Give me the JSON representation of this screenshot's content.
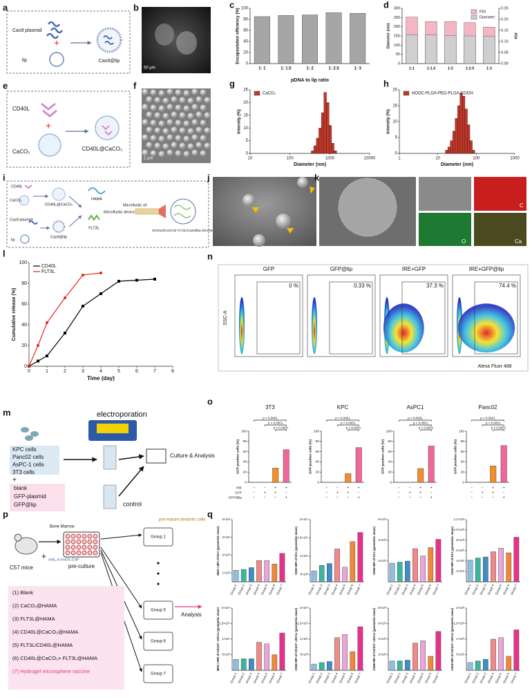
{
  "panel_labels": [
    "a",
    "b",
    "c",
    "d",
    "e",
    "f",
    "g",
    "h",
    "i",
    "j",
    "k",
    "l",
    "m",
    "n",
    "o",
    "p",
    "q"
  ],
  "a": {
    "plasmid": "Cas9 plasmid",
    "lip": "lip",
    "product": "Cas9@lip"
  },
  "b": {
    "scale_bar": "50 μm"
  },
  "e": {
    "protein": "CD40L",
    "core": "CaCO₃",
    "product": "CD40L@CaCO₃"
  },
  "f": {
    "scale_bar": "1 μm"
  },
  "i": {
    "labels": [
      "CD40L",
      "CaCO₃",
      "CD40L@CaCO₃",
      "HAMA",
      "Microfluidic oil",
      "Cas9 plasmid",
      "lip",
      "Cas9@lip",
      "FLT3L",
      "Microfluidic device",
      "CD40L@CaCO3/ FLT3L/Cas9@lip @HAMA"
    ]
  },
  "k": {
    "elements": [
      "C",
      "O",
      "Ca"
    ]
  },
  "n": {
    "y_label": "SSC-A",
    "x_label": "Alexa Fluor 488",
    "plots": [
      {
        "title": "GFP",
        "percent": "0 %"
      },
      {
        "title": "GFP@lip",
        "percent": "0.33 %"
      },
      {
        "title": "IRE+GFP",
        "percent": "37.3 %"
      },
      {
        "title": "IRE+GFP@lip",
        "percent": "74.4 %"
      }
    ]
  },
  "m": {
    "title": "electroporation",
    "cells": [
      "KPC cells",
      "Panc02 cells",
      "AsPC-1 cells",
      "3T3 cells"
    ],
    "treatments": [
      "blank",
      "GFP-plasmid",
      "GFP@lip"
    ],
    "outcome": "Culture & Analysis",
    "control": "control"
  },
  "o_table": {
    "rows": [
      "IRE",
      "GFP",
      "GFP@lip"
    ],
    "signs": [
      [
        "−",
        "−",
        "+",
        "+"
      ],
      [
        "−",
        "+",
        "+",
        "−"
      ],
      [
        "−",
        "−",
        "−",
        "+"
      ]
    ]
  },
  "p": {
    "source": "Bone Marrow",
    "cells": "pre-mature dendritic cells",
    "mice": "C57 mice",
    "cytokines": "rmIL-4 rmGS-CSF",
    "step": "pre-culture",
    "groups": [
      "Group 1",
      "Group 5",
      "Group 6",
      "Group 7"
    ],
    "analysis": "Analysis",
    "list": [
      "(1) Blank",
      "(2) CaCO₃@HAMA",
      "(3) FLT3L@HAMA",
      "(4) CD40L@CaCO₃@HAMA",
      "(5) FLT3L/CD40L@HAMA",
      "(6) CD40L@CaCO₃+ FLT3L@HAMA",
      "(7) Hydrogel microsphere vaccine"
    ]
  },
  "chart_data": [
    {
      "type": "bar",
      "ylabel": "Encapsulation efficiency (%)",
      "xlabel": "pDNA to lip ratio",
      "categories": [
        "1: 1",
        "1: 1.5",
        "1: 2",
        "1: 2.5",
        "1: 3"
      ],
      "values": [
        85,
        87,
        88,
        92,
        91
      ],
      "color": "#a6a6a6",
      "ylim": [
        0,
        100
      ],
      "yticks": [
        0,
        20,
        40,
        60,
        80,
        100
      ]
    },
    {
      "type": "bar",
      "ylabel": "Diameter (nm)",
      "y2label": "PDI",
      "categories": [
        "1:1",
        "1:1.5",
        "1:2",
        "1:2.5",
        "1:3"
      ],
      "series": [
        {
          "name": "PDI",
          "color": "#f4b6c2",
          "values": [
            0.21,
            0.19,
            0.19,
            0.185,
            0.165
          ],
          "axis": "y2"
        },
        {
          "name": "Diameter",
          "color": "#cfcfcf",
          "values": [
            155,
            155,
            152,
            150,
            148
          ]
        }
      ],
      "ylim": [
        0,
        300
      ],
      "yticks": [
        0,
        50,
        100,
        150,
        200,
        250,
        300
      ],
      "y2lim": [
        0,
        0.25
      ],
      "y2ticks": [
        {
          "value": 0,
          "label": "0.00"
        },
        0.05,
        {
          "value": 0.1,
          "label": "0.10"
        },
        0.15,
        {
          "value": 0.2,
          "label": "0.20"
        },
        0.25
      ],
      "legend": "top-right"
    },
    {
      "type": "histogram",
      "ylabel": "Intensity (%)",
      "xlabel": "Diameter (nm)",
      "series": [
        {
          "name": "CaCO₃",
          "color": "#c0392b"
        }
      ],
      "legend": "top-left",
      "bins": [
        342,
        396,
        459,
        531,
        615,
        712,
        825,
        955,
        1106,
        1281,
        1484
      ],
      "values": [
        1,
        3,
        6,
        10,
        16,
        24,
        20,
        11,
        4,
        1
      ],
      "xlog": true,
      "xlim": [
        10,
        10000
      ],
      "xticks": [
        10,
        100,
        1000,
        10000
      ],
      "ylim": [
        0,
        25
      ],
      "yticks": [
        0,
        5,
        10,
        15,
        20,
        25
      ]
    },
    {
      "type": "histogram",
      "ylabel": "Intensity (%)",
      "xlabel": "Diameter (nm)",
      "series": [
        {
          "name": "HOOC-PLGA-PEG-PLGA-COOH",
          "color": "#c0392b"
        }
      ],
      "legend": "top-left",
      "bins": [
        15.7,
        18.2,
        21,
        24.4,
        28.2,
        32.7,
        37.8,
        43.8,
        50.7,
        58.8,
        68.1,
        78.8,
        91.3
      ],
      "values": [
        1,
        2,
        4,
        7,
        11,
        15,
        19,
        18,
        14,
        9,
        4,
        1
      ],
      "xlog": true,
      "xlim": [
        1,
        1000
      ],
      "xticks": [
        1,
        10,
        100,
        1000
      ],
      "ylim": [
        0,
        20
      ],
      "yticks": [
        0,
        5,
        10,
        15,
        20
      ]
    },
    {
      "type": "line",
      "ylabel": "Cumulative release (%)",
      "xlabel": "Time (day)",
      "legend": "top-left",
      "series": [
        {
          "name": "CD40L",
          "color": "#000000",
          "x": [
            0,
            0.5,
            1,
            2,
            3,
            4,
            5,
            6,
            7
          ],
          "values": [
            0,
            5,
            10,
            32,
            58,
            70,
            82,
            83,
            84
          ]
        },
        {
          "name": "FLT3L",
          "color": "#e8231c",
          "x": [
            0,
            0.5,
            1,
            2,
            3,
            4
          ],
          "values": [
            0,
            20,
            42,
            66,
            88,
            90
          ]
        }
      ],
      "xlim": [
        0,
        8
      ],
      "xticks": [
        0,
        1,
        2,
        3,
        4,
        5,
        6,
        7,
        8
      ],
      "ylim": [
        0,
        100
      ],
      "yticks": [
        0,
        20,
        40,
        60,
        80,
        100
      ]
    },
    {
      "type": "bar",
      "title": "3T3",
      "ylabel": "GFP positive cells (%)",
      "categories": [
        null,
        null,
        null,
        null
      ],
      "values": [
        0,
        0,
        28,
        64
      ],
      "colors": [
        "#b0b0b0",
        "#b0b0b0",
        "#f28e2b",
        "#f0679a"
      ],
      "ylim": [
        0,
        100
      ],
      "yticks": [
        0,
        20,
        40,
        60,
        80,
        100
      ],
      "annotations": [
        "p < 0.0001",
        "p < 0.0001",
        "p < 0.0001"
      ]
    },
    {
      "type": "bar",
      "title": "KPC",
      "ylabel": "GFP positive cells (%)",
      "categories": [
        null,
        null,
        null,
        null
      ],
      "values": [
        0,
        0,
        17,
        68
      ],
      "colors": [
        "#b0b0b0",
        "#b0b0b0",
        "#f28e2b",
        "#f0679a"
      ],
      "ylim": [
        0,
        100
      ],
      "yticks": [
        0,
        20,
        40,
        60,
        80,
        100
      ],
      "annotations": [
        "p < 0.0001",
        "p < 0.0001",
        "p < 0.0001"
      ]
    },
    {
      "type": "bar",
      "title": "AsPC1",
      "ylabel": "GFP positive cells (%)",
      "categories": [
        null,
        null,
        null,
        null
      ],
      "values": [
        0,
        0,
        27,
        71
      ],
      "colors": [
        "#b0b0b0",
        "#b0b0b0",
        "#f28e2b",
        "#f0679a"
      ],
      "ylim": [
        0,
        100
      ],
      "yticks": [
        0,
        20,
        40,
        60,
        80,
        100
      ],
      "annotations": [
        "p < 0.0001",
        "p < 0.0001",
        "p < 0.0001"
      ]
    },
    {
      "type": "bar",
      "title": "Panc02",
      "ylabel": "GFP positive cells (%)",
      "categories": [
        null,
        null,
        null,
        null
      ],
      "values": [
        0,
        0,
        32,
        72
      ],
      "colors": [
        "#b0b0b0",
        "#b0b0b0",
        "#f28e2b",
        "#f0679a"
      ],
      "ylim": [
        0,
        100
      ],
      "yticks": [
        0,
        20,
        40,
        60,
        80,
        100
      ],
      "annotations": [
        "p < 0.0001",
        "p < 0.0001",
        "p < 0.0001"
      ]
    },
    {
      "type": "bar",
      "ylabel": "MHC-I MFI of DCs (geometric mean)",
      "categories": [
        "Group 1",
        "Group 2",
        "Group 3",
        "Group 4",
        "Group 5",
        "Group 6",
        "Group 7"
      ],
      "values": [
        1150,
        1200,
        1300,
        1700,
        1700,
        1500,
        2100
      ],
      "colors": [
        "#8fbfe0",
        "#3cb4a0",
        "#3d8fc6",
        "#f08a8a",
        "#e9a6d6",
        "#f0883a",
        "#e6338a"
      ],
      "ylim": [
        500,
        4000
      ],
      "yticks": [
        {
          "value": 1000,
          "label": "1×10³"
        },
        {
          "value": 2000,
          "label": "2×10³"
        },
        {
          "value": 3000,
          "label": "3×10³"
        },
        {
          "value": 4000,
          "label": "4×10³"
        }
      ]
    },
    {
      "type": "bar",
      "ylabel": "CD80 MFI of DCs (geometric mean)",
      "categories": [
        "Group 1",
        "Group 2",
        "Group 3",
        "Group 4",
        "Group 5",
        "Group 6",
        "Group 7"
      ],
      "values": [
        6000,
        7500,
        8000,
        12000,
        7000,
        14000,
        16500
      ],
      "colors": [
        "#8fbfe0",
        "#3cb4a0",
        "#3d8fc6",
        "#f08a8a",
        "#e9a6d6",
        "#f0883a",
        "#e6338a"
      ],
      "ylim": [
        3000,
        20000
      ],
      "yticks": [
        {
          "value": 5000,
          "label": "5×10³"
        },
        {
          "value": 10000,
          "label": "1×10⁴"
        },
        {
          "value": 15000,
          "label": "1.5×10⁴"
        },
        {
          "value": 20000,
          "label": "2×10⁴"
        }
      ]
    },
    {
      "type": "bar",
      "ylabel": "CD86 MFI of DCs (geometric mean)",
      "categories": [
        "Group 1",
        "Group 2",
        "Group 3",
        "Group 4",
        "Group 5",
        "Group 6",
        "Group 7"
      ],
      "values": [
        1800,
        1900,
        2000,
        3200,
        2500,
        3300,
        4100
      ],
      "colors": [
        "#8fbfe0",
        "#3cb4a0",
        "#3d8fc6",
        "#f08a8a",
        "#e9a6d6",
        "#f0883a",
        "#e6338a"
      ],
      "ylim": [
        0,
        6000
      ],
      "yticks": [
        {
          "value": 2000,
          "label": "2×10³"
        },
        {
          "value": 4000,
          "label": "4×10³"
        },
        {
          "value": 6000,
          "label": "6×10³"
        }
      ]
    },
    {
      "type": "bar",
      "ylabel": "CD40 MFI of DCs (geometric mean)",
      "categories": [
        "Group 1",
        "Group 2",
        "Group 3",
        "Group 4",
        "Group 5",
        "Group 6",
        "Group 7"
      ],
      "values": [
        420,
        460,
        480,
        580,
        650,
        560,
        860
      ],
      "colors": [
        "#8fbfe0",
        "#3cb4a0",
        "#3d8fc6",
        "#f08a8a",
        "#e9a6d6",
        "#f0883a",
        "#e6338a"
      ],
      "ylim": [
        0,
        1200
      ],
      "yticks": [
        {
          "value": 200,
          "label": "2×10²"
        },
        {
          "value": 400,
          "label": "4×10²"
        },
        {
          "value": 600,
          "label": "6×10²"
        },
        {
          "value": 800,
          "label": "8×10²"
        },
        {
          "value": 1000,
          "label": "1.0×10³"
        },
        {
          "value": 1200,
          "label": "1.2×10³"
        }
      ]
    },
    {
      "type": "bar",
      "ylabel": "MHC-I MFI of CD103⁺ cDC1s (geometric mean)",
      "categories": [
        "Group 1",
        "Group 2",
        "Group 3",
        "Group 4",
        "Group 5",
        "Group 6",
        "Group 7"
      ],
      "values": [
        3500,
        3700,
        3700,
        9000,
        8500,
        5000,
        12000
      ],
      "colors": [
        "#8fbfe0",
        "#3cb4a0",
        "#3d8fc6",
        "#f08a8a",
        "#e9a6d6",
        "#f0883a",
        "#e6338a"
      ],
      "ylim": [
        0,
        20000
      ],
      "yticks": [
        {
          "value": 5000,
          "label": "5×10³"
        },
        {
          "value": 10000,
          "label": "1×10⁴"
        },
        {
          "value": 15000,
          "label": "1.5×10⁴"
        },
        {
          "value": 20000,
          "label": "2×10⁴"
        }
      ]
    },
    {
      "type": "bar",
      "ylabel": "CD80 MFI of CD103⁺ cDC1s (geometric mean)",
      "categories": [
        "Group 1",
        "Group 2",
        "Group 3",
        "Group 4",
        "Group 5",
        "Group 6",
        "Group 7"
      ],
      "values": [
        2000,
        2500,
        2800,
        10500,
        11500,
        6000,
        14000
      ],
      "colors": [
        "#8fbfe0",
        "#3cb4a0",
        "#3d8fc6",
        "#f08a8a",
        "#e9a6d6",
        "#f0883a",
        "#e6338a"
      ],
      "ylim": [
        0,
        20000
      ],
      "yticks": [
        {
          "value": 5000,
          "label": "5×10³"
        },
        {
          "value": 10000,
          "label": "1×10⁴"
        },
        {
          "value": 15000,
          "label": "1.5×10⁴"
        },
        {
          "value": 20000,
          "label": "2×10⁴"
        }
      ]
    },
    {
      "type": "bar",
      "ylabel": "CD86 MFI of CD103⁺ cDC1s (geometric mean)",
      "categories": [
        "Group 1",
        "Group 2",
        "Group 3",
        "Group 4",
        "Group 5",
        "Group 6",
        "Group 7"
      ],
      "values": [
        1200,
        1200,
        1300,
        3500,
        3800,
        1800,
        5000
      ],
      "colors": [
        "#8fbfe0",
        "#3cb4a0",
        "#3d8fc6",
        "#f08a8a",
        "#e9a6d6",
        "#f0883a",
        "#e6338a"
      ],
      "ylim": [
        0,
        8000
      ],
      "yticks": [
        {
          "value": 2000,
          "label": "2×10³"
        },
        {
          "value": 4000,
          "label": "4×10³"
        },
        {
          "value": 6000,
          "label": "6×10³"
        },
        {
          "value": 8000,
          "label": "8×10³"
        }
      ]
    },
    {
      "type": "bar",
      "ylabel": "CD40 MFI of CD103⁺ cDC1s (geometric mean)",
      "categories": [
        "Group 1",
        "Group 2",
        "Group 3",
        "Group 4",
        "Group 5",
        "Group 6",
        "Group 7"
      ],
      "values": [
        250,
        300,
        350,
        1000,
        1050,
        450,
        1300
      ],
      "colors": [
        "#8fbfe0",
        "#3cb4a0",
        "#3d8fc6",
        "#f08a8a",
        "#e9a6d6",
        "#f0883a",
        "#e6338a"
      ],
      "ylim": [
        0,
        2000
      ],
      "yticks": [
        {
          "value": 500,
          "label": "5×10²"
        },
        {
          "value": 1000,
          "label": "1×10³"
        },
        {
          "value": 1500,
          "label": "1.5×10³"
        },
        {
          "value": 2000,
          "label": "2×10³"
        }
      ]
    }
  ]
}
